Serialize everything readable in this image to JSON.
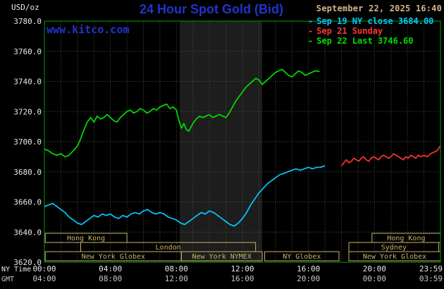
{
  "header": {
    "units": "USD/oz",
    "title": "24 Hour Spot Gold (Bid)",
    "datetime": "September 22, 2025 16:40",
    "watermark": "www.kitco.com"
  },
  "legend": {
    "marker": "-",
    "items": [
      {
        "label": "Sep 19 NY close 3684.00",
        "color": "#00ccff"
      },
      {
        "label": "Sep 21 Sunday",
        "color": "#ff3333"
      },
      {
        "label": "Sep 22 Last 3746.60",
        "color": "#00dd00"
      }
    ]
  },
  "axes": {
    "y_ticks": [
      "3780.0",
      "3760.0",
      "3740.0",
      "3720.0",
      "3700.0",
      "3680.0",
      "3660.0",
      "3640.0",
      "3620.0"
    ],
    "x_row1_label": "NY Time",
    "x_row1_ticks": [
      "00:00",
      "04:00",
      "08:00",
      "12:00",
      "16:00",
      "20:00",
      "23:59"
    ],
    "x_row2_label": "GMT",
    "x_row2_ticks": [
      "04:00",
      "08:00",
      "12:00",
      "16:00",
      "20:00",
      "00:00",
      "03:59"
    ],
    "x_tick_hours": [
      0,
      4,
      8,
      12,
      16,
      20,
      23.983
    ]
  },
  "sessions": [
    {
      "label": "Hong Kong",
      "row": 0,
      "start": 0.05,
      "end": 5.0
    },
    {
      "label": "Hong Kong",
      "row": 0,
      "start": 19.85,
      "end": 24.0
    },
    {
      "label": "London",
      "row": 1,
      "start": 2.2,
      "end": 12.8
    },
    {
      "label": "Sydney",
      "row": 1,
      "start": 18.45,
      "end": 23.9
    },
    {
      "label": "New York Globex",
      "row": 2,
      "start": 0.05,
      "end": 8.3
    },
    {
      "label": "New York NYMEX",
      "row": 2,
      "start": 8.3,
      "end": 13.2
    },
    {
      "label": "NY Globex",
      "row": 2,
      "start": 13.35,
      "end": 17.85
    },
    {
      "label": "New York Globex",
      "row": 2,
      "start": 18.45,
      "end": 24.0
    }
  ],
  "colors": {
    "background": "#000000",
    "title": "#2233cc",
    "link": "#2233cc",
    "tan": "#d2b48c",
    "session": "#c8b268",
    "grid": "#3a563a",
    "frame": "#00a000",
    "band": "#1d1d1d",
    "axis_text": "#e8e8e8",
    "axis_text2": "#c8c8c8"
  },
  "chart_data": {
    "type": "line",
    "title": "24 Hour Spot Gold (Bid)",
    "ylabel": "USD/oz",
    "ylim": [
      3620,
      3780
    ],
    "x_hours_range": [
      0,
      24
    ],
    "grid": true,
    "legend_position": "top-right",
    "nymex_band_hours": [
      8.2,
      13.2
    ],
    "series": [
      {
        "id": "sep19",
        "name": "Sep 19 NY close",
        "close": 3684.0,
        "color": "#00ccff",
        "points": [
          [
            0,
            3657
          ],
          [
            0.25,
            3658
          ],
          [
            0.5,
            3659
          ],
          [
            0.75,
            3657
          ],
          [
            1,
            3655
          ],
          [
            1.25,
            3653
          ],
          [
            1.5,
            3650
          ],
          [
            1.75,
            3648
          ],
          [
            2,
            3646
          ],
          [
            2.25,
            3645
          ],
          [
            2.5,
            3647
          ],
          [
            2.75,
            3649
          ],
          [
            3,
            3651
          ],
          [
            3.25,
            3650
          ],
          [
            3.5,
            3652
          ],
          [
            3.75,
            3651
          ],
          [
            4,
            3652
          ],
          [
            4.25,
            3650
          ],
          [
            4.5,
            3649
          ],
          [
            4.75,
            3651
          ],
          [
            5,
            3650
          ],
          [
            5.25,
            3652
          ],
          [
            5.5,
            3653
          ],
          [
            5.75,
            3652
          ],
          [
            6,
            3654
          ],
          [
            6.25,
            3655
          ],
          [
            6.5,
            3653
          ],
          [
            6.75,
            3652
          ],
          [
            7,
            3653
          ],
          [
            7.25,
            3652
          ],
          [
            7.5,
            3650
          ],
          [
            7.75,
            3649
          ],
          [
            8,
            3648
          ],
          [
            8.25,
            3646
          ],
          [
            8.5,
            3645
          ],
          [
            8.75,
            3647
          ],
          [
            9,
            3649
          ],
          [
            9.25,
            3651
          ],
          [
            9.5,
            3653
          ],
          [
            9.75,
            3652
          ],
          [
            10,
            3654
          ],
          [
            10.25,
            3653
          ],
          [
            10.5,
            3651
          ],
          [
            10.75,
            3649
          ],
          [
            11,
            3647
          ],
          [
            11.25,
            3645
          ],
          [
            11.5,
            3644
          ],
          [
            11.75,
            3646
          ],
          [
            12,
            3649
          ],
          [
            12.25,
            3653
          ],
          [
            12.5,
            3658
          ],
          [
            12.75,
            3662
          ],
          [
            13,
            3666
          ],
          [
            13.25,
            3669
          ],
          [
            13.5,
            3672
          ],
          [
            13.75,
            3674
          ],
          [
            14,
            3676
          ],
          [
            14.25,
            3678
          ],
          [
            14.5,
            3679
          ],
          [
            14.75,
            3680
          ],
          [
            15,
            3681
          ],
          [
            15.25,
            3682
          ],
          [
            15.5,
            3681
          ],
          [
            15.75,
            3682
          ],
          [
            16,
            3683
          ],
          [
            16.25,
            3682
          ],
          [
            16.5,
            3683
          ],
          [
            16.75,
            3683
          ],
          [
            17,
            3684
          ]
        ]
      },
      {
        "id": "sep21",
        "name": "Sep 21 Sunday",
        "color": "#ff3333",
        "points": [
          [
            18,
            3684
          ],
          [
            18.15,
            3686
          ],
          [
            18.3,
            3688
          ],
          [
            18.45,
            3686
          ],
          [
            18.6,
            3687
          ],
          [
            18.75,
            3689
          ],
          [
            18.9,
            3688
          ],
          [
            19.05,
            3687
          ],
          [
            19.2,
            3689
          ],
          [
            19.35,
            3690
          ],
          [
            19.5,
            3688
          ],
          [
            19.65,
            3687
          ],
          [
            19.8,
            3689
          ],
          [
            19.95,
            3690
          ],
          [
            20.1,
            3689
          ],
          [
            20.25,
            3688
          ],
          [
            20.4,
            3690
          ],
          [
            20.55,
            3691
          ],
          [
            20.7,
            3690
          ],
          [
            20.85,
            3689
          ],
          [
            21,
            3690
          ],
          [
            21.15,
            3692
          ],
          [
            21.3,
            3691
          ],
          [
            21.45,
            3690
          ],
          [
            21.6,
            3689
          ],
          [
            21.75,
            3688
          ],
          [
            21.9,
            3690
          ],
          [
            22.05,
            3689
          ],
          [
            22.2,
            3691
          ],
          [
            22.35,
            3690
          ],
          [
            22.5,
            3689
          ],
          [
            22.65,
            3691
          ],
          [
            22.8,
            3690
          ],
          [
            23,
            3691
          ],
          [
            23.2,
            3690
          ],
          [
            23.4,
            3692
          ],
          [
            23.6,
            3693
          ],
          [
            23.8,
            3694
          ],
          [
            23.98,
            3697
          ]
        ]
      },
      {
        "id": "sep22",
        "name": "Sep 22",
        "last": 3746.6,
        "color": "#00dd00",
        "points": [
          [
            0,
            3695
          ],
          [
            0.25,
            3694
          ],
          [
            0.5,
            3692
          ],
          [
            0.75,
            3691
          ],
          [
            1,
            3692
          ],
          [
            1.25,
            3690
          ],
          [
            1.5,
            3691
          ],
          [
            1.75,
            3694
          ],
          [
            2,
            3697
          ],
          [
            2.2,
            3702
          ],
          [
            2.4,
            3708
          ],
          [
            2.6,
            3713
          ],
          [
            2.8,
            3716
          ],
          [
            3,
            3713
          ],
          [
            3.2,
            3717
          ],
          [
            3.4,
            3715
          ],
          [
            3.6,
            3716
          ],
          [
            3.8,
            3718
          ],
          [
            4,
            3716
          ],
          [
            4.2,
            3714
          ],
          [
            4.4,
            3713
          ],
          [
            4.6,
            3716
          ],
          [
            4.8,
            3718
          ],
          [
            5,
            3720
          ],
          [
            5.2,
            3721
          ],
          [
            5.4,
            3719
          ],
          [
            5.6,
            3720
          ],
          [
            5.8,
            3722
          ],
          [
            6,
            3721
          ],
          [
            6.2,
            3719
          ],
          [
            6.4,
            3720
          ],
          [
            6.6,
            3722
          ],
          [
            6.8,
            3721
          ],
          [
            7,
            3723
          ],
          [
            7.2,
            3724
          ],
          [
            7.4,
            3725
          ],
          [
            7.6,
            3722
          ],
          [
            7.8,
            3723
          ],
          [
            8,
            3721
          ],
          [
            8.15,
            3714
          ],
          [
            8.3,
            3709
          ],
          [
            8.45,
            3712
          ],
          [
            8.6,
            3708
          ],
          [
            8.75,
            3707
          ],
          [
            8.9,
            3710
          ],
          [
            9.05,
            3713
          ],
          [
            9.2,
            3715
          ],
          [
            9.4,
            3717
          ],
          [
            9.6,
            3716
          ],
          [
            9.8,
            3717
          ],
          [
            10,
            3718
          ],
          [
            10.2,
            3716
          ],
          [
            10.4,
            3717
          ],
          [
            10.6,
            3718
          ],
          [
            10.8,
            3717
          ],
          [
            11,
            3716
          ],
          [
            11.2,
            3719
          ],
          [
            11.4,
            3723
          ],
          [
            11.6,
            3727
          ],
          [
            11.8,
            3730
          ],
          [
            12,
            3733
          ],
          [
            12.2,
            3736
          ],
          [
            12.4,
            3738
          ],
          [
            12.6,
            3740
          ],
          [
            12.8,
            3742
          ],
          [
            13,
            3741
          ],
          [
            13.2,
            3738
          ],
          [
            13.4,
            3740
          ],
          [
            13.6,
            3742
          ],
          [
            13.8,
            3744
          ],
          [
            14,
            3746
          ],
          [
            14.2,
            3747
          ],
          [
            14.4,
            3748
          ],
          [
            14.6,
            3746
          ],
          [
            14.8,
            3744
          ],
          [
            15,
            3743
          ],
          [
            15.2,
            3745
          ],
          [
            15.4,
            3747
          ],
          [
            15.6,
            3746
          ],
          [
            15.8,
            3744
          ],
          [
            16,
            3745
          ],
          [
            16.2,
            3746
          ],
          [
            16.4,
            3747
          ],
          [
            16.67,
            3746.6
          ]
        ]
      }
    ]
  }
}
